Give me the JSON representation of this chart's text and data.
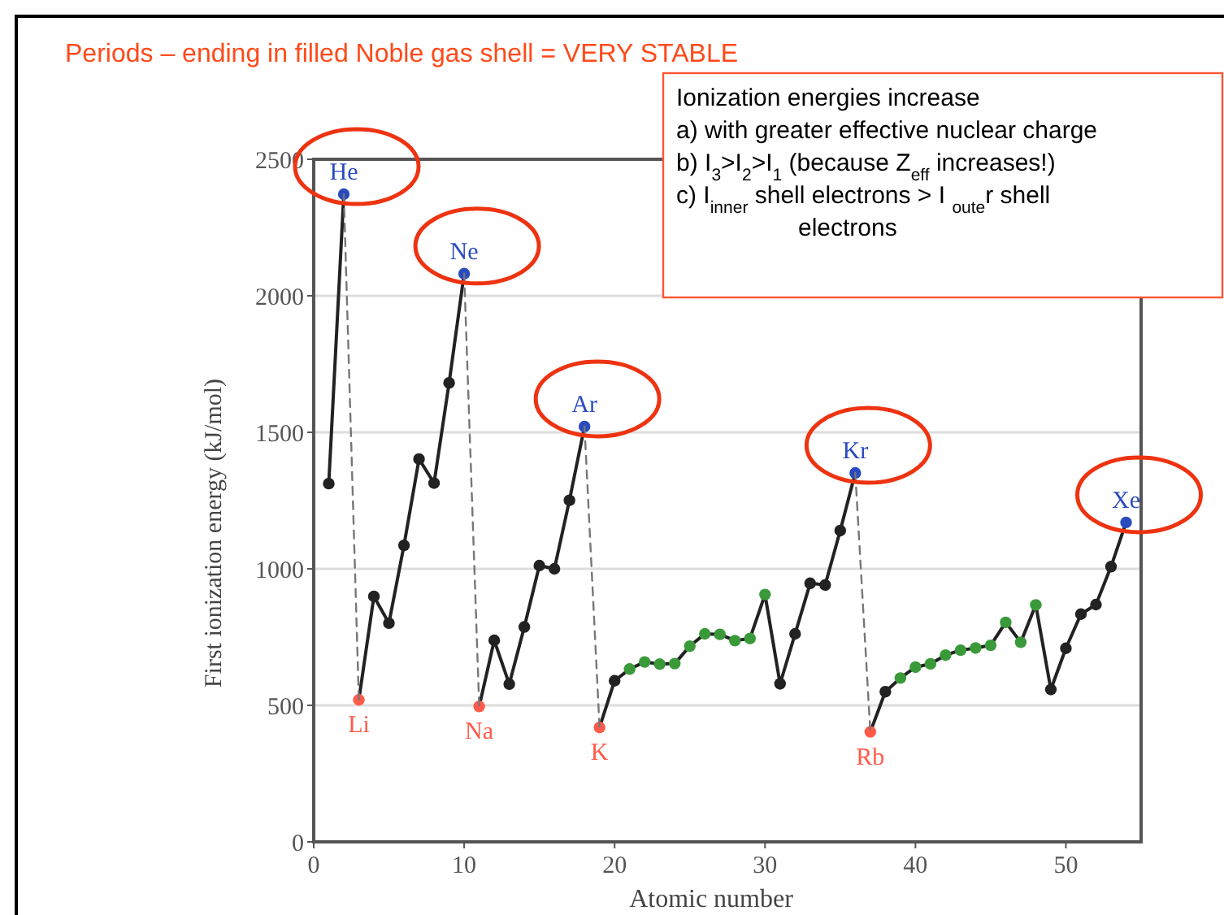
{
  "chart_data": {
    "type": "line",
    "title": "Periods – ending in filled Noble gas shell = VERY STABLE",
    "xlabel": "Atomic number",
    "ylabel": "First ionization energy (kJ/mol)",
    "xlim": [
      0,
      55
    ],
    "ylim": [
      0,
      2500
    ],
    "xticks": [
      0,
      10,
      20,
      30,
      40,
      50
    ],
    "yticks": [
      0,
      500,
      1000,
      1500,
      2000,
      2500
    ],
    "grid": "y",
    "marker": "circle",
    "series": [
      {
        "color": "#222222",
        "line_style": "solid",
        "x": [
          1,
          2
        ],
        "values": [
          1312,
          2372
        ],
        "colors": [
          "#222222",
          "#2a4bbf"
        ]
      },
      {
        "color": "#222222",
        "line_style": "solid",
        "x": [
          3,
          4,
          5,
          6,
          7,
          8,
          9,
          10
        ],
        "values": [
          520,
          899,
          801,
          1086,
          1402,
          1314,
          1681,
          2081
        ],
        "colors": [
          "#ff5a4a",
          "#222222",
          "#222222",
          "#222222",
          "#222222",
          "#222222",
          "#222222",
          "#2a4bbf"
        ]
      },
      {
        "color": "#222222",
        "line_style": "solid",
        "x": [
          11,
          12,
          13,
          14,
          15,
          16,
          17,
          18
        ],
        "values": [
          496,
          738,
          578,
          787,
          1012,
          1000,
          1251,
          1521
        ],
        "colors": [
          "#ff5a4a",
          "#222222",
          "#222222",
          "#222222",
          "#222222",
          "#222222",
          "#222222",
          "#2a4bbf"
        ]
      },
      {
        "color": "#222222",
        "line_style": "solid",
        "x": [
          19,
          20,
          21,
          22,
          23,
          24,
          25,
          26,
          27,
          28,
          29,
          30,
          31,
          32,
          33,
          34,
          35,
          36
        ],
        "values": [
          419,
          590,
          633,
          659,
          651,
          653,
          717,
          762,
          760,
          737,
          745,
          906,
          579,
          762,
          947,
          941,
          1140,
          1351
        ],
        "colors": [
          "#ff5a4a",
          "#222222",
          "#3a9a3a",
          "#3a9a3a",
          "#3a9a3a",
          "#3a9a3a",
          "#3a9a3a",
          "#3a9a3a",
          "#3a9a3a",
          "#3a9a3a",
          "#3a9a3a",
          "#3a9a3a",
          "#222222",
          "#222222",
          "#222222",
          "#222222",
          "#222222",
          "#2a4bbf"
        ]
      },
      {
        "color": "#222222",
        "line_style": "solid",
        "x": [
          37,
          38,
          39,
          40,
          41,
          42,
          43,
          44,
          45,
          46,
          47,
          48,
          49,
          50,
          51,
          52,
          53,
          54
        ],
        "values": [
          403,
          550,
          600,
          640,
          652,
          684,
          702,
          710,
          720,
          804,
          731,
          868,
          558,
          709,
          834,
          869,
          1008,
          1170
        ],
        "colors": [
          "#ff5a4a",
          "#222222",
          "#3a9a3a",
          "#3a9a3a",
          "#3a9a3a",
          "#3a9a3a",
          "#3a9a3a",
          "#3a9a3a",
          "#3a9a3a",
          "#3a9a3a",
          "#3a9a3a",
          "#3a9a3a",
          "#222222",
          "#222222",
          "#222222",
          "#222222",
          "#222222",
          "#2a4bbf"
        ]
      },
      {
        "color": "#777777",
        "line_style": "dashed",
        "marker": "none",
        "x": [
          2,
          3
        ],
        "values": [
          2372,
          520
        ]
      },
      {
        "color": "#777777",
        "line_style": "dashed",
        "marker": "none",
        "x": [
          10,
          11
        ],
        "values": [
          2081,
          496
        ]
      },
      {
        "color": "#777777",
        "line_style": "dashed",
        "marker": "none",
        "x": [
          18,
          19
        ],
        "values": [
          1521,
          419
        ]
      },
      {
        "color": "#777777",
        "line_style": "dashed",
        "marker": "none",
        "x": [
          36,
          37
        ],
        "values": [
          1351,
          403
        ]
      }
    ],
    "annotations": [
      {
        "text": "He",
        "x": 2,
        "y": 2372
      },
      {
        "text": "Ne",
        "x": 10,
        "y": 2081
      },
      {
        "text": "Ar",
        "x": 18,
        "y": 1521
      },
      {
        "text": "Kr",
        "x": 36,
        "y": 1351
      },
      {
        "text": "Xe",
        "x": 54,
        "y": 1170
      },
      {
        "text": "Li",
        "x": 3,
        "y": 520
      },
      {
        "text": "Na",
        "x": 11,
        "y": 496
      },
      {
        "text": "K",
        "x": 19,
        "y": 419
      },
      {
        "text": "Rb",
        "x": 37,
        "y": 403
      },
      "Ionization energies increase",
      "a) with greater effective nuclear charge",
      "b) I$_{3}$>I$_{2}$>I$_{1}$   (because Z$_{eff}$ increases!)",
      "c) I$_{inner}$ shell electrons > I $_{oute}$r shell electrons"
    ]
  }
}
